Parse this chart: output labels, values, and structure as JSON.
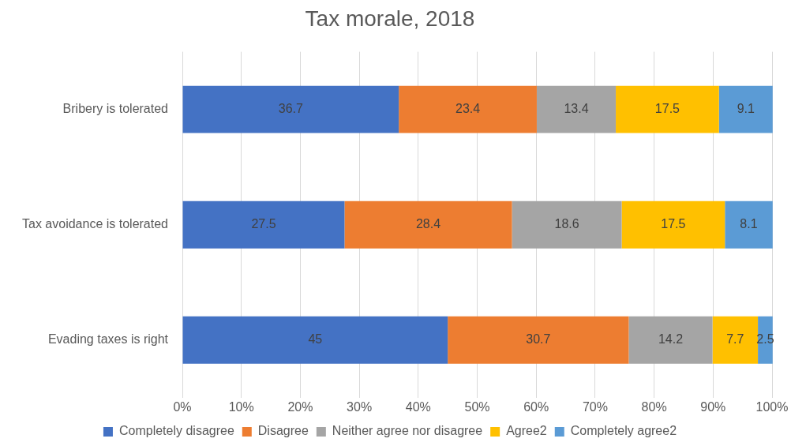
{
  "chart_data": {
    "type": "bar",
    "title": "Tax morale, 2018",
    "orientation": "horizontal",
    "stacked": true,
    "categories": [
      "Bribery is tolerated",
      "Tax avoidance is tolerated",
      "Evading taxes is right"
    ],
    "series": [
      {
        "name": "Completely disagree",
        "color": "#4472c4",
        "values": [
          36.7,
          27.5,
          45
        ]
      },
      {
        "name": "Disagree",
        "color": "#ed7d31",
        "values": [
          23.4,
          28.4,
          30.7
        ]
      },
      {
        "name": "Neither agree nor disagree",
        "color": "#a5a5a5",
        "values": [
          13.4,
          18.6,
          14.2
        ]
      },
      {
        "name": "Agree2",
        "color": "#ffc000",
        "values": [
          17.5,
          17.5,
          7.7
        ]
      },
      {
        "name": "Completely agree2",
        "color": "#5b9bd5",
        "values": [
          9.1,
          8.1,
          2.5
        ]
      }
    ],
    "xlim": [
      0,
      100
    ],
    "xticks": [
      {
        "value": 0,
        "label": "0%"
      },
      {
        "value": 10,
        "label": "10%"
      },
      {
        "value": 20,
        "label": "20%"
      },
      {
        "value": 30,
        "label": "30%"
      },
      {
        "value": 40,
        "label": "40%"
      },
      {
        "value": 50,
        "label": "50%"
      },
      {
        "value": 60,
        "label": "60%"
      },
      {
        "value": 70,
        "label": "70%"
      },
      {
        "value": 80,
        "label": "80%"
      },
      {
        "value": 90,
        "label": "90%"
      },
      {
        "value": 100,
        "label": "100%"
      }
    ],
    "grid": "x",
    "legend": "bottom",
    "data_labels": true
  }
}
